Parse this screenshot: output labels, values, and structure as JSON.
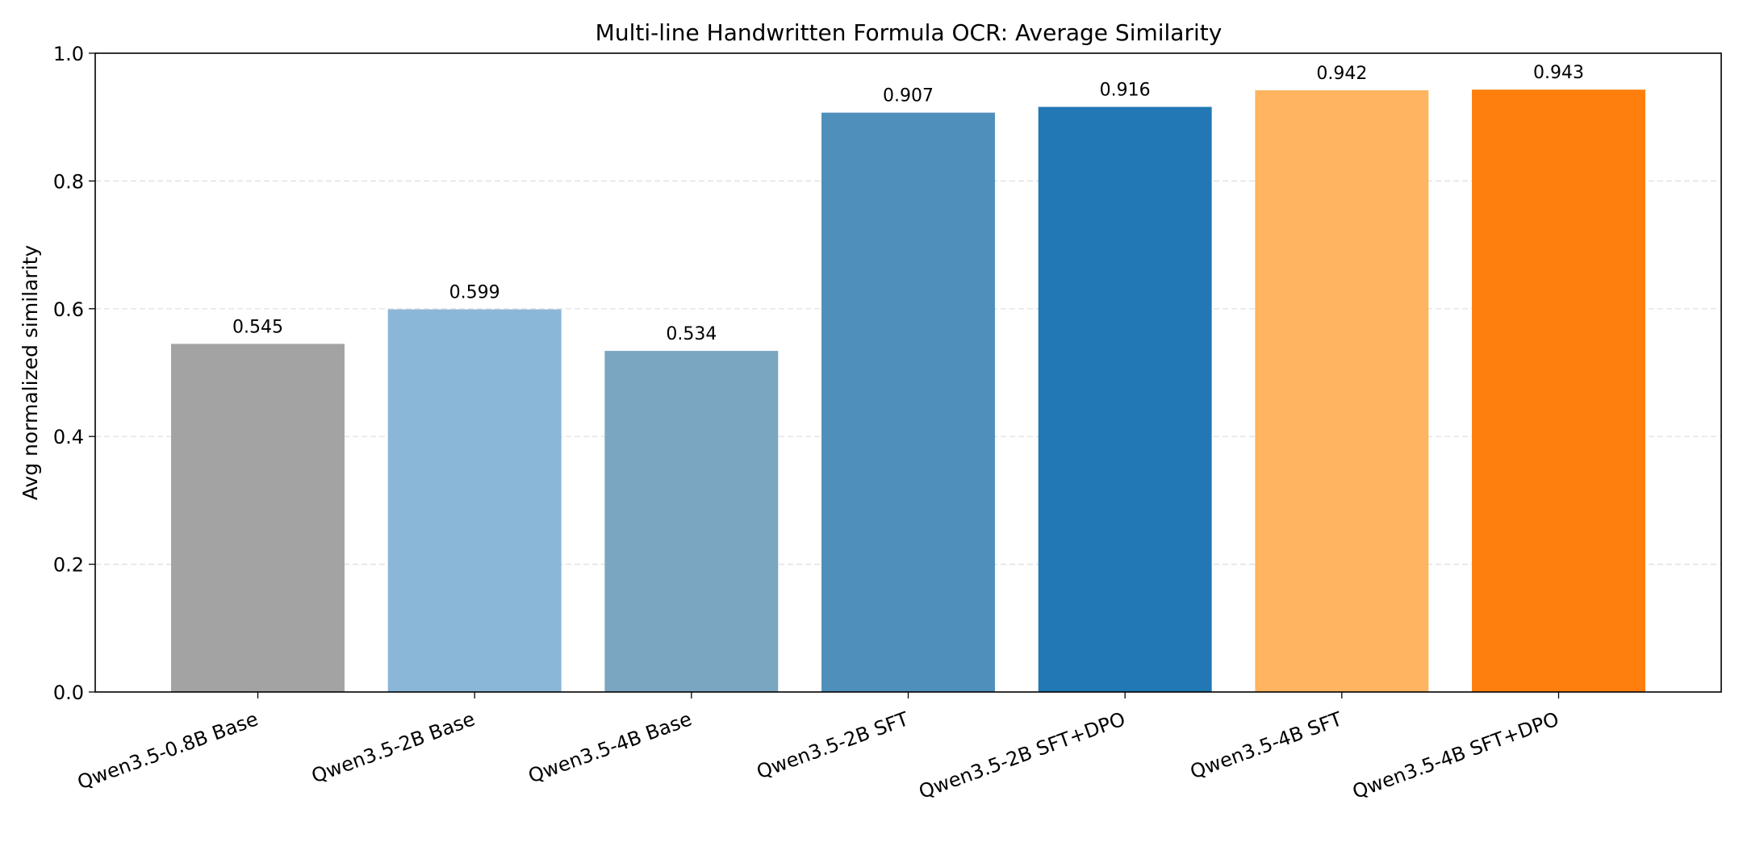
{
  "chart_data": {
    "type": "bar",
    "title": "Multi-line Handwritten Formula OCR: Average Similarity",
    "xlabel": "",
    "ylabel": "Avg normalized similarity",
    "ylim": [
      0,
      1.0
    ],
    "yticks": [
      "0.0",
      "0.2",
      "0.4",
      "0.6",
      "0.8",
      "1.0"
    ],
    "grid": "horizontal dashed",
    "categories": [
      "Qwen3.5-0.8B Base",
      "Qwen3.5-2B Base",
      "Qwen3.5-4B Base",
      "Qwen3.5-2B SFT",
      "Qwen3.5-2B SFT+DPO",
      "Qwen3.5-4B SFT",
      "Qwen3.5-4B SFT+DPO"
    ],
    "values": [
      0.545,
      0.599,
      0.534,
      0.907,
      0.916,
      0.942,
      0.943
    ],
    "value_labels": [
      "0.545",
      "0.599",
      "0.534",
      "0.907",
      "0.916",
      "0.942",
      "0.943"
    ],
    "colors": [
      "#a3a3a3",
      "#8ab6d8",
      "#7ba6c2",
      "#4f8fbb",
      "#2178b4",
      "#feb461",
      "#fe7f0e"
    ]
  }
}
